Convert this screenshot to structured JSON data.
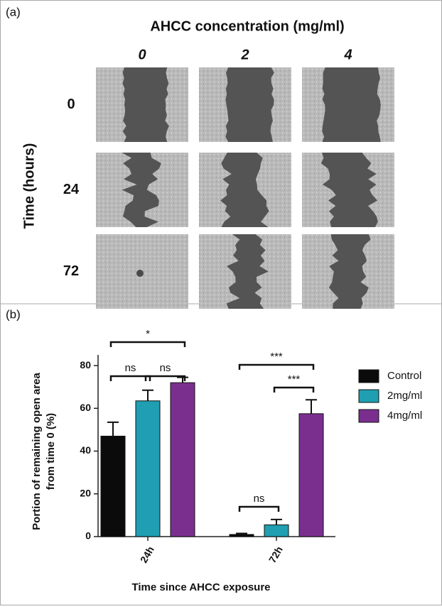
{
  "panel_a": {
    "label": "(a)",
    "title": "AHCC concentration (mg/ml)",
    "columns": [
      "0",
      "2",
      "4"
    ],
    "row_title": "Time (hours)",
    "rows": [
      "0",
      "24",
      "72"
    ]
  },
  "panel_b_label": "(b)",
  "chart_data": {
    "type": "bar",
    "categories": [
      "24h",
      "72h"
    ],
    "series": [
      {
        "name": "Control",
        "color": "#0b0b0b",
        "values": [
          47,
          1
        ],
        "errors": [
          6.5,
          0.5
        ]
      },
      {
        "name": "2mg/ml",
        "color": "#1f9fb1",
        "values": [
          63.5,
          5.5
        ],
        "errors": [
          5,
          2.5
        ]
      },
      {
        "name": "4mg/ml",
        "color": "#7a2f8f",
        "values": [
          72,
          57.5
        ],
        "errors": [
          2.5,
          6.5
        ]
      }
    ],
    "ylabel": [
      "Portion of remaining open area",
      "from time 0 (%)"
    ],
    "xlabel": "Time since AHCC exposure",
    "ylim": [
      0,
      85
    ],
    "yticks": [
      0,
      20,
      40,
      60,
      80
    ],
    "annotations": [
      "*",
      "ns",
      "ns",
      "***",
      "***",
      "ns"
    ],
    "legend": "right"
  }
}
